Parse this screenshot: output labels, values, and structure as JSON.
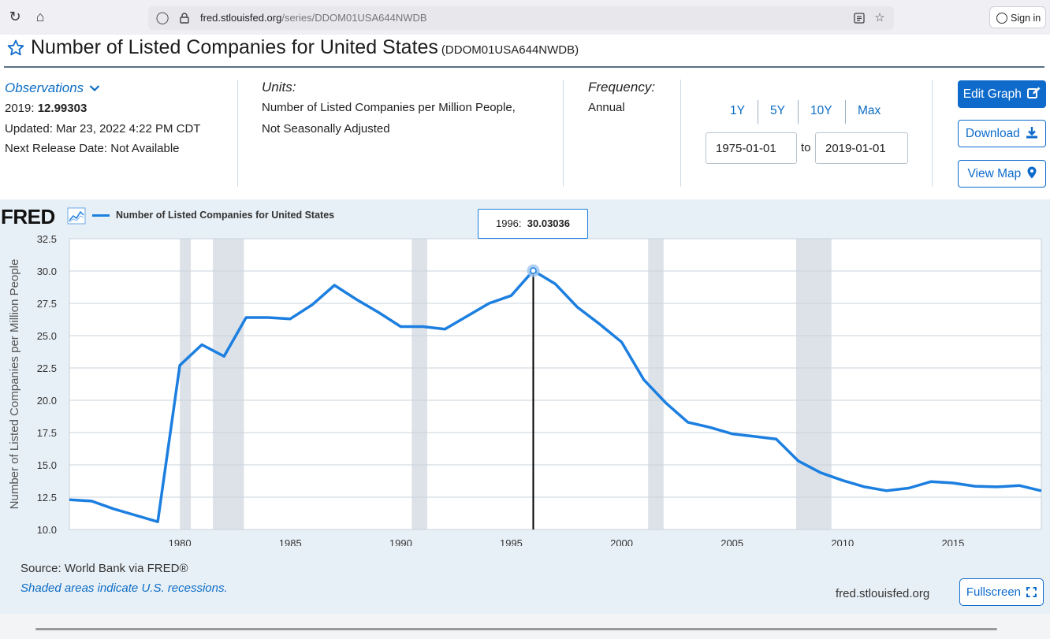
{
  "browser": {
    "url_host": "fred.stlouisfed.org",
    "url_path": "/series/DDOM01USA644NWDB",
    "sign_in": "Sign in"
  },
  "page": {
    "title": "Number of Listed Companies for United States",
    "series_id": "(DDOM01USA644NWDB)"
  },
  "observations": {
    "toggle_label": "Observations",
    "latest_label": "2019:",
    "latest_value": "12.99303",
    "updated": "Updated: Mar 23, 2022 4:22 PM CDT",
    "next_release": "Next Release Date: Not Available"
  },
  "units": {
    "label": "Units:",
    "line1": "Number of Listed Companies per Million People,",
    "line2": "Not Seasonally Adjusted"
  },
  "frequency": {
    "label": "Frequency:",
    "value": "Annual"
  },
  "range": {
    "buttons": [
      "1Y",
      "5Y",
      "10Y",
      "Max"
    ],
    "start": "1975-01-01",
    "to_label": "to",
    "end": "2019-01-01"
  },
  "actions": {
    "edit_graph": "Edit Graph",
    "download": "Download",
    "view_map": "View Map",
    "fullscreen": "Fullscreen"
  },
  "chart_footer": {
    "logo": "FRED",
    "source": "Source: World Bank via FRED®",
    "recession_note": "Shaded areas indicate U.S. recessions.",
    "site": "fred.stlouisfed.org"
  },
  "tooltip": {
    "label": "1996:",
    "value": "30.03036"
  },
  "colors": {
    "series": "#1c7fe0",
    "recession": "#dde2e8",
    "accent": "#0e6bcc"
  },
  "chart_data": {
    "type": "line",
    "title": "Number of Listed Companies for United States",
    "ylabel": "Number of Listed Companies per Million People",
    "xlabel": "",
    "legend": "Number of Listed Companies for United States",
    "xlim": [
      1975,
      2019
    ],
    "ylim": [
      10.0,
      32.5
    ],
    "yticks": [
      "10.0",
      "12.5",
      "15.0",
      "17.5",
      "20.0",
      "22.5",
      "25.0",
      "27.5",
      "30.0",
      "32.5"
    ],
    "xticks": [
      "1980",
      "1985",
      "1990",
      "1995",
      "2000",
      "2005",
      "2010",
      "2015"
    ],
    "recessions": [
      [
        1980.0,
        1980.5
      ],
      [
        1981.5,
        1982.9
      ],
      [
        1990.5,
        1991.2
      ],
      [
        2001.2,
        2001.9
      ],
      [
        2007.9,
        2009.5
      ]
    ],
    "highlight": {
      "x": 1996,
      "y": 30.03036
    },
    "series": [
      {
        "name": "Number of Listed Companies for United States",
        "x": [
          1975,
          1976,
          1977,
          1978,
          1979,
          1980,
          1981,
          1982,
          1983,
          1984,
          1985,
          1986,
          1987,
          1988,
          1989,
          1990,
          1991,
          1992,
          1993,
          1994,
          1995,
          1996,
          1997,
          1998,
          1999,
          2000,
          2001,
          2002,
          2003,
          2004,
          2005,
          2006,
          2007,
          2008,
          2009,
          2010,
          2011,
          2012,
          2013,
          2014,
          2015,
          2016,
          2017,
          2018,
          2019
        ],
        "values": [
          12.3,
          12.2,
          11.6,
          11.1,
          10.6,
          22.7,
          24.3,
          23.4,
          26.4,
          26.4,
          26.3,
          27.4,
          28.9,
          27.8,
          26.8,
          25.7,
          25.7,
          25.5,
          26.5,
          27.5,
          28.1,
          30.03036,
          29.0,
          27.2,
          25.9,
          24.5,
          21.6,
          19.8,
          18.3,
          17.9,
          17.4,
          17.2,
          17.0,
          15.3,
          14.4,
          13.8,
          13.3,
          13.0,
          13.2,
          13.7,
          13.6,
          13.35,
          13.3,
          13.4,
          12.99303
        ]
      }
    ]
  }
}
